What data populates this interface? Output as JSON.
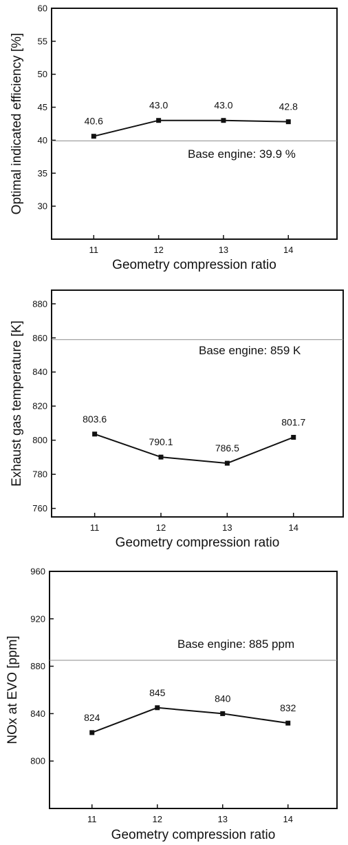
{
  "chart_data": [
    {
      "type": "line",
      "x": [
        11,
        12,
        13,
        14
      ],
      "values": [
        40.6,
        43.0,
        43.0,
        42.8
      ],
      "data_labels": [
        "40.6",
        "43.0",
        "43.0",
        "42.8"
      ],
      "xlabel": "Geometry compression ratio",
      "ylabel": "Optimal indicated efficiency [%]",
      "xlim": [
        10.35,
        14.75
      ],
      "ylim": [
        25,
        60
      ],
      "xticks": [
        "11",
        "12",
        "13",
        "14"
      ],
      "yticks": [
        30,
        35,
        40,
        45,
        50,
        55,
        60
      ],
      "baseline": {
        "value": 39.9,
        "label": "Base engine: 39.9 %"
      },
      "grid": false
    },
    {
      "type": "line",
      "x": [
        11,
        12,
        13,
        14
      ],
      "values": [
        803.6,
        790.1,
        786.5,
        801.7
      ],
      "data_labels": [
        "803.6",
        "790.1",
        "786.5",
        "801.7"
      ],
      "xlabel": "Geometry compression ratio",
      "ylabel": "Exhaust gas temperature [K]",
      "xlim": [
        10.35,
        14.75
      ],
      "ylim": [
        755,
        888
      ],
      "xticks": [
        "11",
        "12",
        "13",
        "14"
      ],
      "yticks": [
        760,
        780,
        800,
        820,
        840,
        860,
        880
      ],
      "baseline": {
        "value": 859,
        "label": "Base engine: 859 K"
      },
      "grid": false
    },
    {
      "type": "line",
      "x": [
        11,
        12,
        13,
        14
      ],
      "values": [
        824,
        845,
        840,
        832
      ],
      "data_labels": [
        "824",
        "845",
        "840",
        "832"
      ],
      "xlabel": "Geometry compression ratio",
      "ylabel": "NOx at EVO [ppm]",
      "xlim": [
        10.35,
        14.75
      ],
      "ylim": [
        760,
        960
      ],
      "xticks": [
        "11",
        "12",
        "13",
        "14"
      ],
      "yticks": [
        800,
        840,
        880,
        920,
        960
      ],
      "baseline": {
        "value": 885,
        "label": "Base engine: 885 ppm"
      },
      "grid": false
    }
  ]
}
